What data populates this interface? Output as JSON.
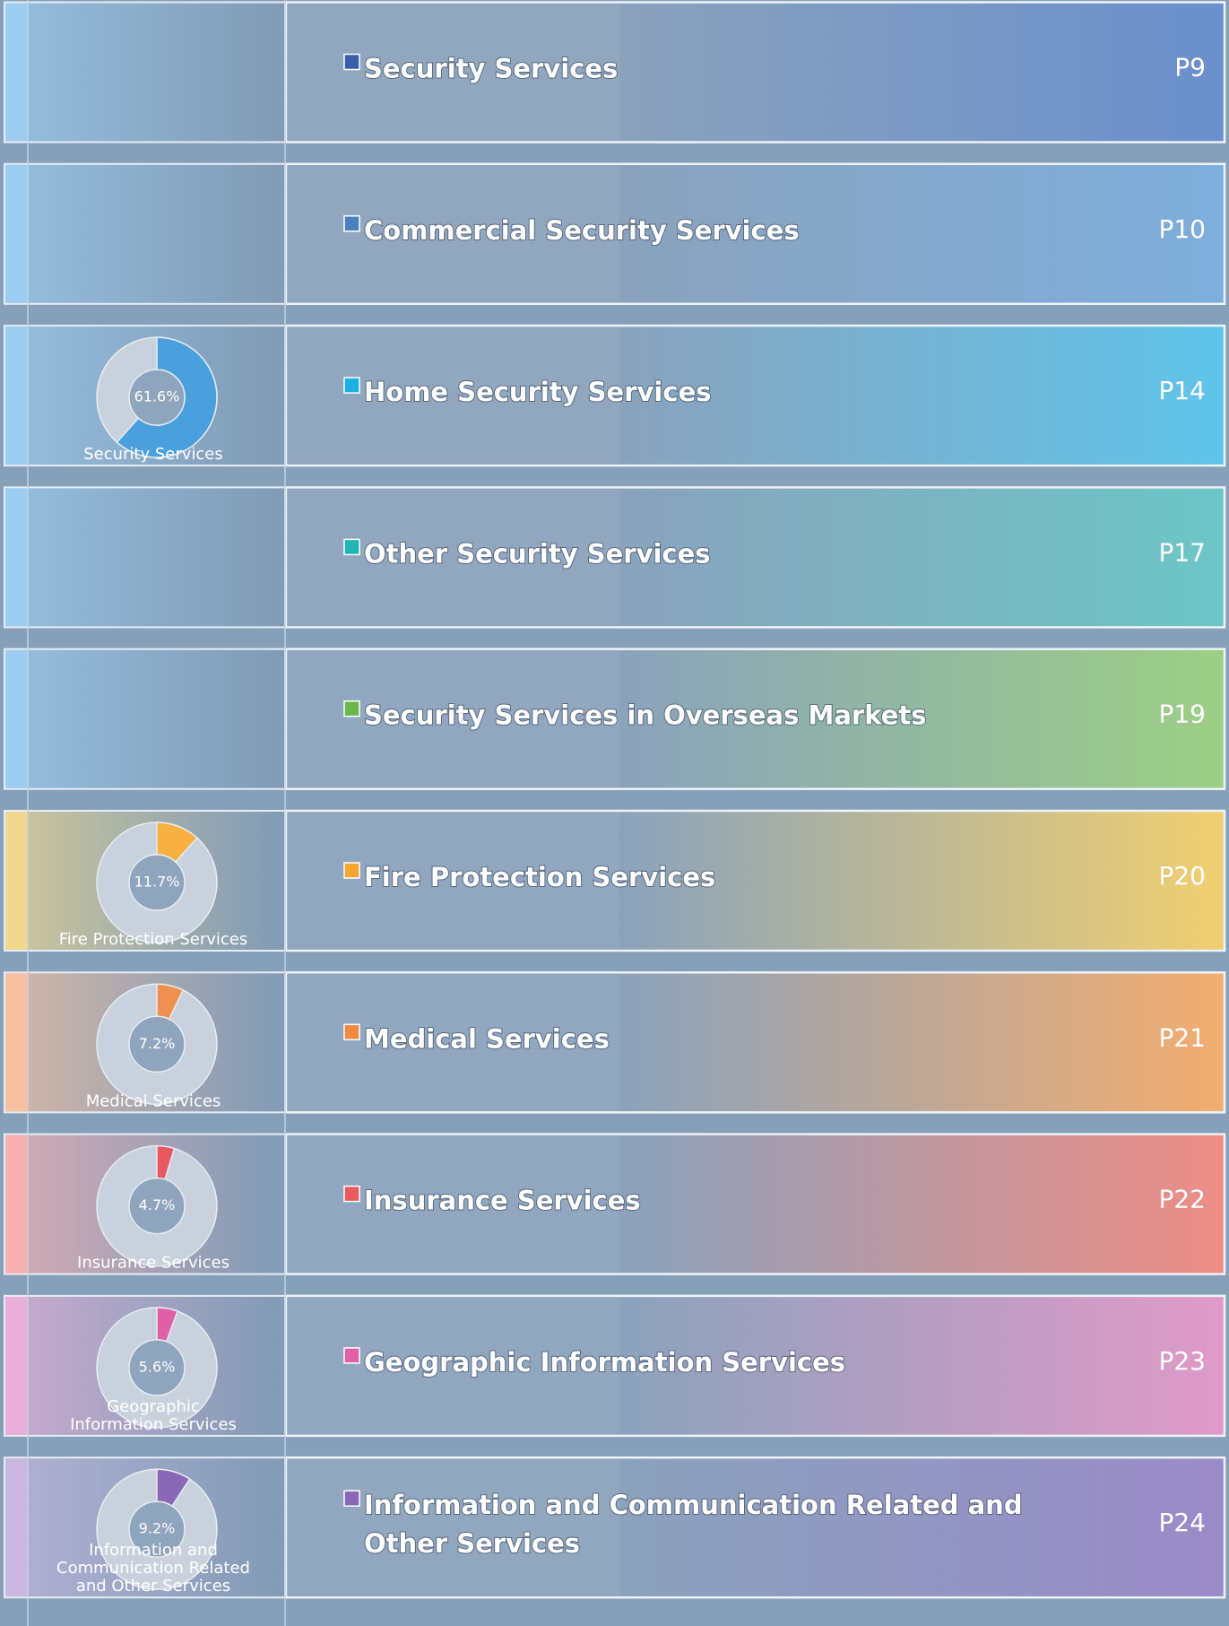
{
  "rows": [
    {
      "title": [
        "Security Services"
      ],
      "page": "P9",
      "color": "#3b5fad",
      "end_color": "#6a8fcc",
      "strip_color": "#9ccdf0"
    },
    {
      "title": [
        "Commercial Security Services"
      ],
      "page": "P10",
      "color": "#4a7fc0",
      "end_color": "#7eaedc",
      "strip_color": "#9ccdf0"
    },
    {
      "title": [
        "Home Security Services"
      ],
      "page": "P14",
      "color": "#1ab0e6",
      "end_color": "#5fc4ea",
      "strip_color": "#9ccdf0",
      "donut": {
        "value": 61.6,
        "label": "61.6%",
        "caption": [
          "Security Services"
        ],
        "color": "#4aa0dc"
      }
    },
    {
      "title": [
        "Other Security Services"
      ],
      "page": "P17",
      "color": "#20b5b5",
      "end_color": "#6cc6c6",
      "strip_color": "#9ccdf0"
    },
    {
      "title": [
        "Security Services in Overseas Markets"
      ],
      "page": "P19",
      "color": "#6ab84a",
      "end_color": "#9ccf85",
      "strip_color": "#9ccdf0"
    },
    {
      "title": [
        "Fire Protection Services"
      ],
      "page": "P20",
      "color": "#f5a630",
      "end_color": "#f0cf70",
      "strip_color": "#f0d890",
      "donut": {
        "value": 11.7,
        "label": "11.7%",
        "caption": [
          "Fire Protection Services"
        ],
        "color": "#f8b040"
      }
    },
    {
      "title": [
        "Medical Services"
      ],
      "page": "P21",
      "color": "#f08a40",
      "end_color": "#f3ad70",
      "strip_color": "#f8c0a0",
      "donut": {
        "value": 7.2,
        "label": "7.2%",
        "caption": [
          "Medical Services"
        ],
        "color": "#f09050"
      }
    },
    {
      "title": [
        "Insurance Services"
      ],
      "page": "P22",
      "color": "#e85a60",
      "end_color": "#ee8d85",
      "strip_color": "#f8b0b0",
      "donut": {
        "value": 4.7,
        "label": "4.7%",
        "caption": [
          "Insurance Services"
        ],
        "color": "#e85860"
      }
    },
    {
      "title": [
        "Geographic Information Services"
      ],
      "page": "P23",
      "color": "#e060a8",
      "end_color": "#e09ac8",
      "strip_color": "#e8b0d8",
      "donut": {
        "value": 5.6,
        "label": "5.6%",
        "caption": [
          "Geographic",
          "Information Services"
        ],
        "color": "#e060a8"
      }
    },
    {
      "title": [
        "Information and Communication Related and",
        "Other Services"
      ],
      "page": "P24",
      "color": "#8a68b8",
      "end_color": "#9a8ac8",
      "strip_color": "#c8b8e0",
      "donut": {
        "value": 9.2,
        "label": "9.2%",
        "caption": [
          "Information and",
          "Communication Related",
          "and Other Services"
        ],
        "color": "#8a68b8"
      }
    }
  ]
}
